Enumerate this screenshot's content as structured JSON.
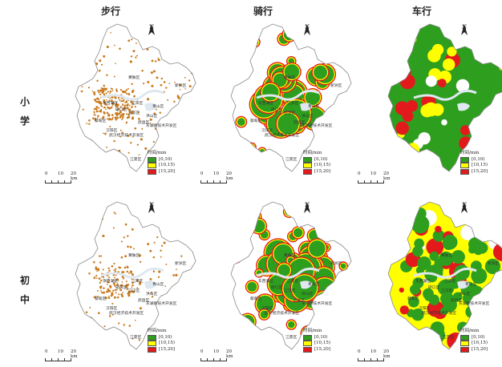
{
  "columns": [
    "步行",
    "骑行",
    "车行"
  ],
  "rows": [
    "小学",
    "初中"
  ],
  "legend": {
    "title": "时间/min",
    "classes": [
      {
        "label": "[0,10)",
        "color": "#2e9e1f"
      },
      {
        "label": "[10,15)",
        "color": "#ffff00"
      },
      {
        "label": "[15,20]",
        "color": "#e31a1c"
      }
    ]
  },
  "scale_bar": {
    "ticks": [
      "0",
      "10",
      "20"
    ],
    "unit": "km"
  },
  "north_label": "N",
  "district_labels": [
    "黄陂区",
    "东西湖区",
    "江岸区",
    "江汉区",
    "硚口区",
    "汉阳区",
    "武昌区",
    "洪山区",
    "青山区",
    "新洲区",
    "蔡甸区",
    "武汉经济技术开发区",
    "东湖新技术开发区",
    "江夏区"
  ],
  "colors": {
    "boundary": "#888888",
    "walk_dot": "#c87a1e",
    "water": "#dfe8f0"
  }
}
